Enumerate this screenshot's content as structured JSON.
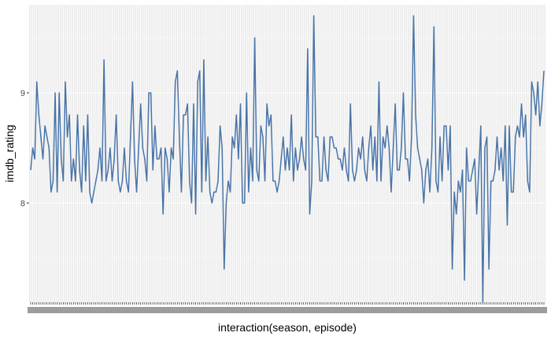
{
  "chart_data": {
    "type": "line",
    "xlabel": "interaction(season, episode)",
    "ylabel": "imdb_rating",
    "y_ticks": [
      8,
      9
    ],
    "ylim": [
      7.1,
      9.8
    ],
    "x_tick_labels_legible": false,
    "grid": "on",
    "panel_background": "#ebebeb",
    "line_color": "#4a75a8",
    "series": [
      {
        "values": [
          8.3,
          8.5,
          8.4,
          9.1,
          8.8,
          8.6,
          8.4,
          8.7,
          8.6,
          8.5,
          8.1,
          8.2,
          9.0,
          8.1,
          9.0,
          8.4,
          8.2,
          9.1,
          8.6,
          8.8,
          8.2,
          8.4,
          8.2,
          8.8,
          8.3,
          8.1,
          8.7,
          8.2,
          8.8,
          8.1,
          8.0,
          8.1,
          8.2,
          8.3,
          8.5,
          8.2,
          9.3,
          8.2,
          8.3,
          8.5,
          8.2,
          8.4,
          8.8,
          8.2,
          8.1,
          8.2,
          8.5,
          8.2,
          8.1,
          8.6,
          9.1,
          8.4,
          8.1,
          8.5,
          8.9,
          8.5,
          8.4,
          8.2,
          9.0,
          9.0,
          8.3,
          8.7,
          8.4,
          8.4,
          8.5,
          7.9,
          8.5,
          8.4,
          8.1,
          8.5,
          8.4,
          9.1,
          9.2,
          8.6,
          8.1,
          8.8,
          8.8,
          8.9,
          8.2,
          8.0,
          8.9,
          7.9,
          9.1,
          9.2,
          8.1,
          9.3,
          8.2,
          8.6,
          8.1,
          8.0,
          8.1,
          8.1,
          8.2,
          8.7,
          8.5,
          7.4,
          8.0,
          8.2,
          8.1,
          8.6,
          8.5,
          8.8,
          8.4,
          8.9,
          8.0,
          8.0,
          9.0,
          8.1,
          8.5,
          8.2,
          9.5,
          8.3,
          8.2,
          8.7,
          8.6,
          8.2,
          8.9,
          8.7,
          8.8,
          8.2,
          8.2,
          8.1,
          8.2,
          8.4,
          8.6,
          8.3,
          8.5,
          8.3,
          8.8,
          8.2,
          8.5,
          8.3,
          8.4,
          8.6,
          8.4,
          8.3,
          9.4,
          7.9,
          8.2,
          9.7,
          8.6,
          8.6,
          8.2,
          8.2,
          8.6,
          8.3,
          8.2,
          8.6,
          8.6,
          8.5,
          8.5,
          8.4,
          8.4,
          8.3,
          8.5,
          8.3,
          8.2,
          8.9,
          8.3,
          8.2,
          8.3,
          8.5,
          8.4,
          8.6,
          8.3,
          8.2,
          8.5,
          8.7,
          8.3,
          8.6,
          8.2,
          9.1,
          8.2,
          8.6,
          8.5,
          8.7,
          8.5,
          8.1,
          8.5,
          8.9,
          8.3,
          8.3,
          8.5,
          9.0,
          8.4,
          8.4,
          8.2,
          8.6,
          9.7,
          8.8,
          8.5,
          8.4,
          8.3,
          8.0,
          8.3,
          8.4,
          8.1,
          8.5,
          9.6,
          8.2,
          8.1,
          8.6,
          8.2,
          8.7,
          8.7,
          8.3,
          8.7,
          7.4,
          8.1,
          7.9,
          8.2,
          8.1,
          8.3,
          7.3,
          8.5,
          8.2,
          8.2,
          8.3,
          8.4,
          7.9,
          8.3,
          8.7,
          7.1,
          8.5,
          8.6,
          7.4,
          8.2,
          8.2,
          8.3,
          8.6,
          8.3,
          8.5,
          8.2,
          8.7,
          7.8,
          8.7,
          8.1,
          8.1,
          8.6,
          8.7,
          8.6,
          8.9,
          8.6,
          8.8,
          8.2,
          8.1,
          9.1,
          9.0,
          8.8,
          9.1,
          8.7,
          8.9,
          9.2
        ]
      }
    ]
  }
}
